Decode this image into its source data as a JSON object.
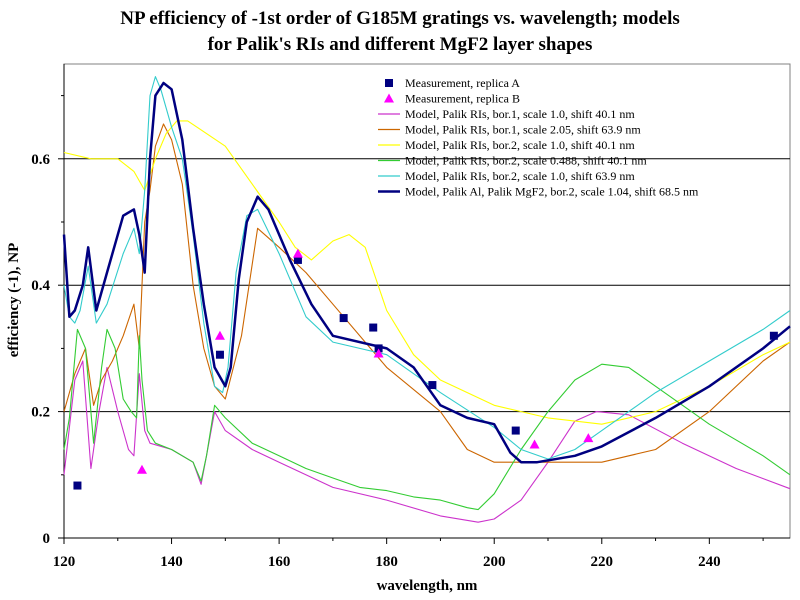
{
  "title_line1": "NP efficiency of -1st order of G185M gratings vs. wavelength; models",
  "title_line2": "for Palik's RIs and different MgF2 layer shapes",
  "chart_data": {
    "type": "scatter",
    "xlabel": "wavelength, nm",
    "ylabel": "efficiency (-1), NP",
    "xlim": [
      120,
      255
    ],
    "ylim": [
      0,
      0.75
    ],
    "xticks": [
      120,
      140,
      160,
      180,
      200,
      220,
      240
    ],
    "yticks": [
      0,
      0.2,
      0.4,
      0.6
    ],
    "ytick_labels": [
      "0",
      "0.2",
      "0.4",
      "0.6"
    ],
    "gridlines_y": [
      0.2,
      0.4,
      0.6
    ],
    "legend_position": "top-right",
    "series": [
      {
        "name": "Measurement, replica A",
        "kind": "marker-square",
        "color": "#000080",
        "x": [
          122.5,
          149,
          163.5,
          172,
          177.5,
          178.5,
          188.5,
          204,
          252
        ],
        "y": [
          0.083,
          0.29,
          0.44,
          0.348,
          0.333,
          0.3,
          0.242,
          0.17,
          0.32
        ]
      },
      {
        "name": "Measurement, replica B",
        "kind": "marker-triangle",
        "color": "#ff00ff",
        "x": [
          134.5,
          149,
          163.5,
          178.5,
          207.5,
          217.5
        ],
        "y": [
          0.108,
          0.32,
          0.45,
          0.292,
          0.148,
          0.158
        ]
      },
      {
        "name": "Model, Palik RIs, bor.1, scale 1.0, shift 40.1 nm",
        "kind": "line",
        "color": "#cc33cc",
        "x": [
          120,
          122,
          123.5,
          125,
          126.5,
          128,
          130,
          132,
          133,
          134,
          135,
          136,
          140,
          144,
          145.5,
          146.5,
          148,
          150,
          155,
          160,
          170,
          180,
          190,
          197,
          200,
          205,
          210,
          215,
          219,
          225,
          235,
          245,
          255
        ],
        "y": [
          0.1,
          0.25,
          0.28,
          0.11,
          0.2,
          0.27,
          0.2,
          0.14,
          0.13,
          0.26,
          0.17,
          0.15,
          0.14,
          0.12,
          0.085,
          0.13,
          0.2,
          0.17,
          0.14,
          0.12,
          0.08,
          0.06,
          0.035,
          0.025,
          0.03,
          0.06,
          0.12,
          0.185,
          0.2,
          0.195,
          0.15,
          0.11,
          0.078
        ]
      },
      {
        "name": "Model, Palik RIs, bor.1, scale 2.05, shift 63.9 nm",
        "kind": "line",
        "color": "#cc6600",
        "x": [
          120,
          122,
          124,
          125.5,
          127,
          129,
          131,
          133,
          134,
          135,
          136,
          137,
          138.5,
          140,
          142,
          144,
          146,
          148,
          150,
          153,
          156,
          160,
          165,
          170,
          180,
          190,
          195,
          200,
          205,
          210,
          215,
          220,
          230,
          240,
          250,
          255
        ],
        "y": [
          0.2,
          0.26,
          0.3,
          0.21,
          0.25,
          0.28,
          0.32,
          0.37,
          0.3,
          0.5,
          0.55,
          0.62,
          0.655,
          0.63,
          0.56,
          0.4,
          0.3,
          0.24,
          0.22,
          0.32,
          0.49,
          0.46,
          0.42,
          0.37,
          0.27,
          0.2,
          0.14,
          0.12,
          0.12,
          0.12,
          0.12,
          0.12,
          0.14,
          0.2,
          0.28,
          0.31
        ]
      },
      {
        "name": "Model, Palik RIs, bor.2, scale 1.0, shift 40.1 nm",
        "kind": "line",
        "color": "#ffff00",
        "x": [
          120,
          125,
          130,
          133,
          135,
          137,
          139,
          141,
          143,
          150,
          155,
          160,
          163,
          166,
          170,
          173,
          176,
          180,
          185,
          190,
          200,
          210,
          220,
          230,
          240,
          250,
          255
        ],
        "y": [
          0.61,
          0.6,
          0.6,
          0.58,
          0.55,
          0.6,
          0.64,
          0.66,
          0.66,
          0.62,
          0.56,
          0.5,
          0.46,
          0.44,
          0.47,
          0.48,
          0.46,
          0.36,
          0.29,
          0.25,
          0.21,
          0.19,
          0.18,
          0.2,
          0.24,
          0.29,
          0.31
        ]
      },
      {
        "name": "Model, Palik RIs, bor.2, scale 0.488, shift 40.1 nm",
        "kind": "line",
        "color": "#33cc33",
        "x": [
          120,
          121,
          122.5,
          124,
          125.5,
          127,
          128,
          129.5,
          131,
          132.5,
          133.5,
          134,
          134.5,
          135.5,
          137,
          140,
          144,
          145.5,
          146.5,
          148,
          150,
          155,
          160,
          165,
          170,
          175,
          180,
          185,
          190,
          195,
          197,
          200,
          205,
          210,
          215,
          220,
          225,
          230,
          240,
          250,
          255
        ],
        "y": [
          0.14,
          0.19,
          0.33,
          0.3,
          0.15,
          0.27,
          0.33,
          0.3,
          0.22,
          0.2,
          0.19,
          0.32,
          0.25,
          0.17,
          0.15,
          0.14,
          0.12,
          0.09,
          0.13,
          0.21,
          0.19,
          0.15,
          0.13,
          0.11,
          0.095,
          0.08,
          0.075,
          0.065,
          0.06,
          0.048,
          0.045,
          0.07,
          0.14,
          0.2,
          0.25,
          0.275,
          0.27,
          0.24,
          0.18,
          0.13,
          0.1
        ]
      },
      {
        "name": "Model, Palik RIs, bor.2, scale 1.0, shift 63.9 nm",
        "kind": "line",
        "color": "#33cccc",
        "x": [
          120,
          121,
          122,
          123,
          124.5,
          126,
          128,
          131,
          133,
          134,
          135,
          136,
          137,
          138,
          139,
          140,
          142,
          144,
          146,
          148,
          149.5,
          150.5,
          152,
          154,
          156,
          160,
          165,
          170,
          180,
          190,
          200,
          205,
          210,
          215,
          220,
          230,
          240,
          250,
          255
        ],
        "y": [
          0.4,
          0.35,
          0.34,
          0.36,
          0.43,
          0.34,
          0.37,
          0.45,
          0.49,
          0.45,
          0.55,
          0.7,
          0.73,
          0.71,
          0.68,
          0.65,
          0.6,
          0.48,
          0.34,
          0.24,
          0.23,
          0.27,
          0.42,
          0.51,
          0.52,
          0.45,
          0.35,
          0.31,
          0.29,
          0.23,
          0.175,
          0.14,
          0.125,
          0.14,
          0.17,
          0.23,
          0.28,
          0.33,
          0.36
        ]
      },
      {
        "name": "Model, Palik Al, Palik MgF2, bor.2, scale 1.04, shift 68.5 nm",
        "kind": "line-thick",
        "color": "#000080",
        "x": [
          120,
          121,
          122,
          123.5,
          124.5,
          126,
          128,
          131,
          133,
          134,
          135,
          136,
          137,
          138.5,
          140,
          142,
          144,
          146,
          148,
          150,
          151,
          152.5,
          154,
          156,
          158,
          162,
          166,
          170,
          180,
          185,
          190,
          195,
          200,
          203,
          205,
          208,
          215,
          220,
          230,
          240,
          250,
          255
        ],
        "y": [
          0.48,
          0.35,
          0.36,
          0.4,
          0.46,
          0.36,
          0.42,
          0.51,
          0.52,
          0.48,
          0.42,
          0.6,
          0.7,
          0.72,
          0.71,
          0.63,
          0.49,
          0.37,
          0.27,
          0.24,
          0.27,
          0.41,
          0.5,
          0.54,
          0.52,
          0.44,
          0.37,
          0.32,
          0.3,
          0.27,
          0.21,
          0.19,
          0.18,
          0.135,
          0.12,
          0.12,
          0.13,
          0.145,
          0.19,
          0.24,
          0.3,
          0.335
        ]
      }
    ]
  }
}
